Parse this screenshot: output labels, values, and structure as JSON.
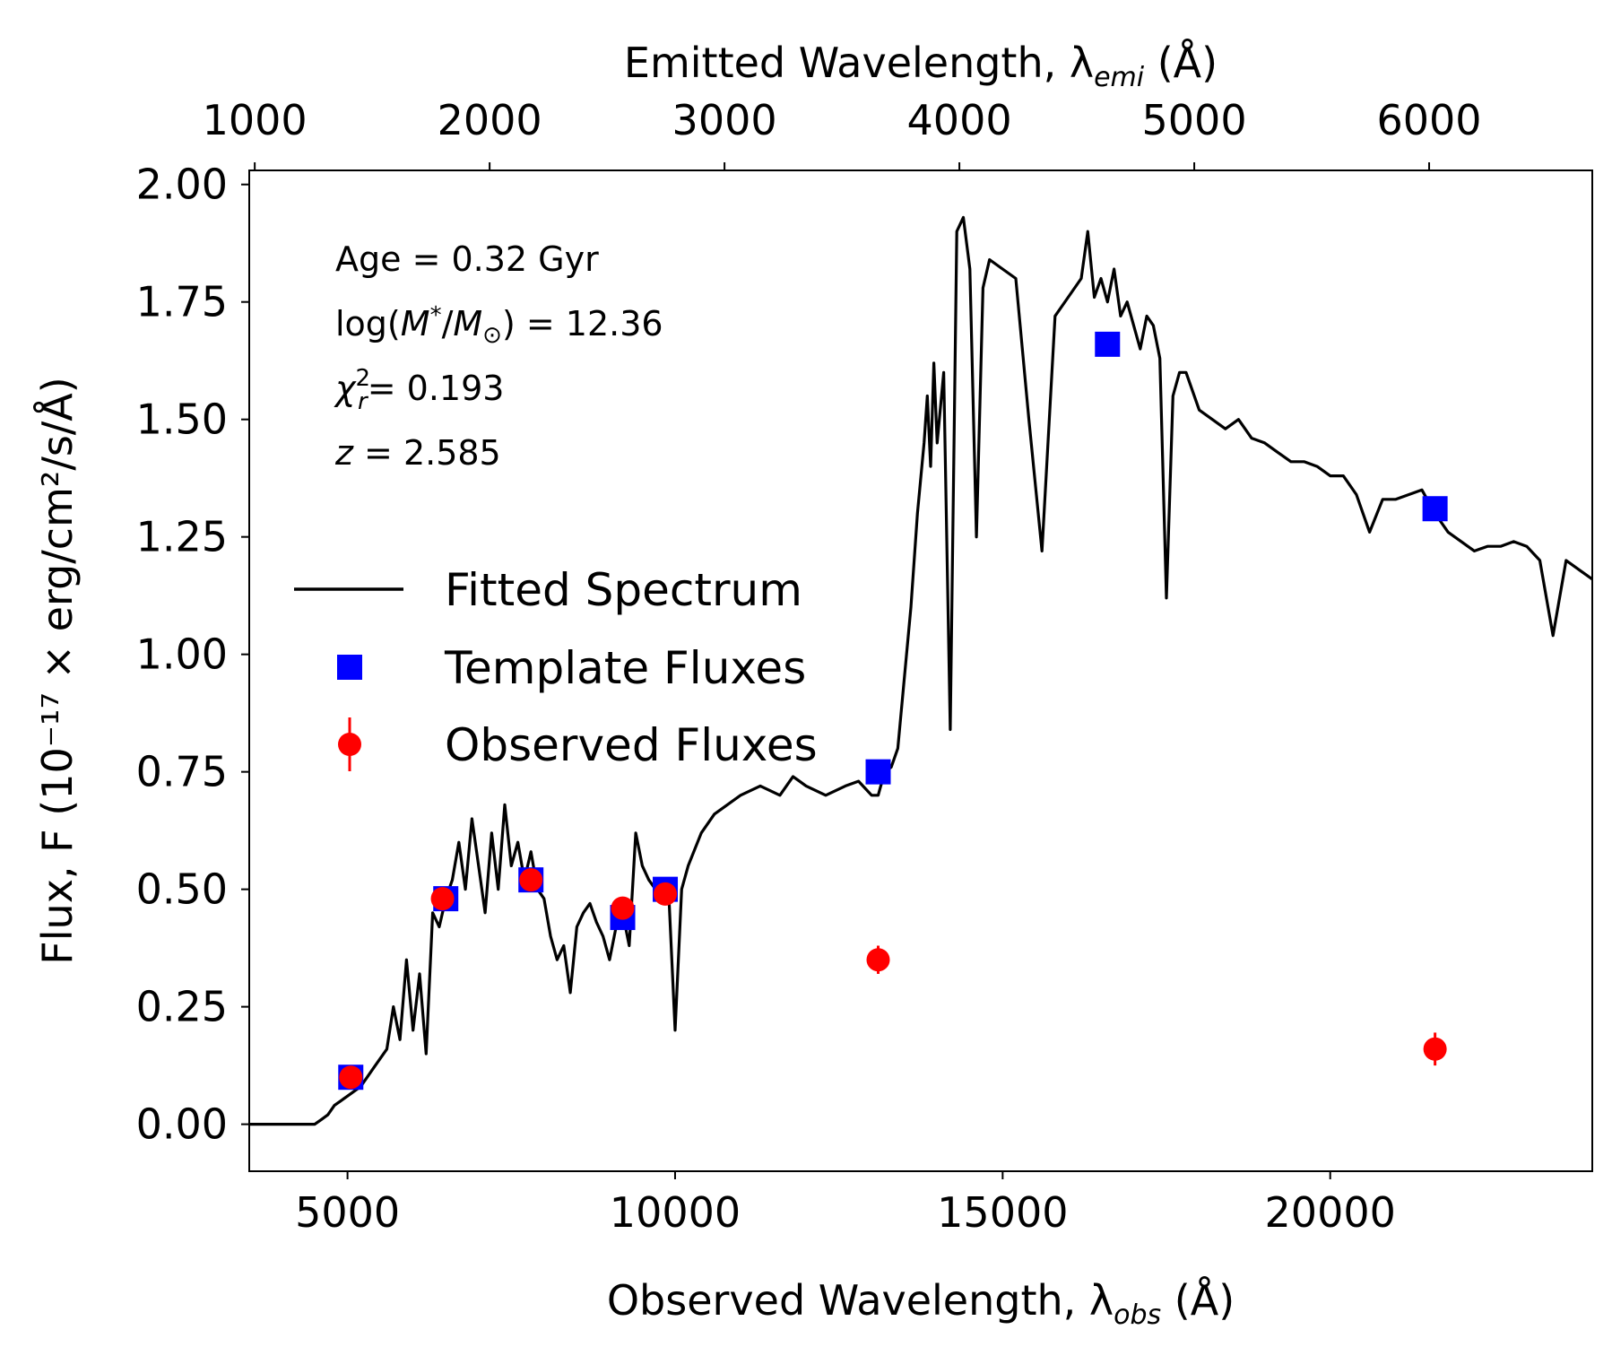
{
  "chart_data": {
    "type": "line",
    "title": "",
    "xlabel": "Observed Wavelength, λ",
    "xlabel_sub": "obs",
    "xlabel_unit": " (Å)",
    "top_xlabel": "Emitted Wavelength, λ",
    "top_xlabel_sub": "emi",
    "top_xlabel_unit": " (Å)",
    "ylabel": "Flux, F  (10⁻¹⁷ × erg/cm²/s/Å)",
    "xlim": [
      3500,
      24000
    ],
    "ylim": [
      -0.1,
      2.03
    ],
    "top_xlim": [
      976.57,
      6694.56
    ],
    "x_ticks": [
      5000,
      10000,
      15000,
      20000
    ],
    "x_tick_labels": [
      "5000",
      "10000",
      "15000",
      "20000"
    ],
    "top_x_ticks": [
      1000,
      2000,
      3000,
      4000,
      5000,
      6000
    ],
    "top_x_tick_labels": [
      "1000",
      "2000",
      "3000",
      "4000",
      "5000",
      "6000"
    ],
    "y_ticks": [
      0,
      0.25,
      0.5,
      0.75,
      1.0,
      1.25,
      1.5,
      1.75,
      2.0
    ],
    "y_tick_labels": [
      "0.00",
      "0.25",
      "0.50",
      "0.75",
      "1.00",
      "1.25",
      "1.50",
      "1.75",
      "2.00"
    ],
    "annotations": {
      "age": "Age = 0.32 Gyr",
      "mass": "log(M*/M⊙) = 12.36",
      "mass_prefix": "log(",
      "mass_m": "M",
      "mass_star": "*",
      "mass_sep": "/",
      "mass_msun": "M",
      "mass_sun": "⊙",
      "mass_rest": ") = 12.36",
      "chi": "χ²ᵣ= 0.193",
      "chi_sym": "χ",
      "chi_sup": "2",
      "chi_sub": "r",
      "chi_rest": "= 0.193",
      "z": "z = 2.585",
      "z_sym": "z",
      "z_rest": " = 2.585"
    },
    "legend": {
      "placement": "center-left",
      "entries": [
        "Fitted Spectrum",
        "Template Fluxes",
        "Observed Fluxes"
      ]
    },
    "colors": {
      "spectrum": "#000000",
      "template": "#0000ff",
      "observed": "#ff0000"
    },
    "series": [
      {
        "name": "Fitted Spectrum",
        "kind": "line",
        "x": [
          3500,
          4000,
          4500,
          4600,
          4700,
          4800,
          4900,
          5000,
          5100,
          5200,
          5300,
          5400,
          5500,
          5600,
          5700,
          5800,
          5900,
          6000,
          6100,
          6200,
          6300,
          6400,
          6500,
          6600,
          6700,
          6800,
          6900,
          7000,
          7100,
          7200,
          7300,
          7400,
          7500,
          7600,
          7700,
          7800,
          7900,
          8000,
          8100,
          8200,
          8300,
          8400,
          8500,
          8600,
          8700,
          8800,
          8900,
          9000,
          9100,
          9200,
          9300,
          9400,
          9500,
          9600,
          9700,
          9800,
          9900,
          10000,
          10100,
          10200,
          10400,
          10600,
          10800,
          11000,
          11300,
          11600,
          11800,
          12000,
          12300,
          12600,
          12800,
          13000,
          13100,
          13200,
          13300,
          13400,
          13500,
          13600,
          13700,
          13800,
          13850,
          13900,
          13950,
          14000,
          14100,
          14200,
          14300,
          14400,
          14500,
          14600,
          14700,
          14800,
          15000,
          15200,
          15400,
          15600,
          15800,
          16000,
          16200,
          16300,
          16400,
          16500,
          16600,
          16700,
          16800,
          16900,
          17000,
          17100,
          17200,
          17300,
          17400,
          17500,
          17600,
          17700,
          17800,
          18000,
          18200,
          18400,
          18600,
          18800,
          19000,
          19200,
          19400,
          19600,
          19800,
          20000,
          20200,
          20400,
          20600,
          20800,
          21000,
          21200,
          21400,
          21600,
          21800,
          22000,
          22200,
          22400,
          22600,
          22800,
          23000,
          23200,
          23400,
          23600,
          23800,
          24000
        ],
        "y": [
          0,
          0,
          0,
          0.01,
          0.02,
          0.04,
          0.05,
          0.06,
          0.07,
          0.08,
          0.1,
          0.12,
          0.14,
          0.16,
          0.25,
          0.18,
          0.35,
          0.2,
          0.32,
          0.15,
          0.45,
          0.42,
          0.48,
          0.52,
          0.6,
          0.5,
          0.65,
          0.55,
          0.45,
          0.62,
          0.5,
          0.68,
          0.55,
          0.6,
          0.52,
          0.58,
          0.5,
          0.48,
          0.4,
          0.35,
          0.38,
          0.28,
          0.42,
          0.45,
          0.47,
          0.43,
          0.4,
          0.35,
          0.42,
          0.45,
          0.38,
          0.62,
          0.55,
          0.52,
          0.5,
          0.48,
          0.5,
          0.2,
          0.5,
          0.55,
          0.62,
          0.66,
          0.68,
          0.7,
          0.72,
          0.7,
          0.74,
          0.72,
          0.7,
          0.72,
          0.73,
          0.7,
          0.7,
          0.75,
          0.76,
          0.8,
          0.95,
          1.1,
          1.3,
          1.45,
          1.55,
          1.4,
          1.62,
          1.45,
          1.6,
          0.84,
          1.9,
          1.93,
          1.82,
          1.25,
          1.78,
          1.84,
          1.82,
          1.8,
          1.5,
          1.22,
          1.72,
          1.76,
          1.8,
          1.9,
          1.76,
          1.8,
          1.75,
          1.82,
          1.72,
          1.75,
          1.7,
          1.65,
          1.72,
          1.7,
          1.63,
          1.12,
          1.55,
          1.6,
          1.6,
          1.52,
          1.5,
          1.48,
          1.5,
          1.46,
          1.45,
          1.43,
          1.41,
          1.41,
          1.4,
          1.38,
          1.38,
          1.34,
          1.26,
          1.33,
          1.33,
          1.34,
          1.35,
          1.3,
          1.26,
          1.24,
          1.22,
          1.23,
          1.23,
          1.24,
          1.23,
          1.2,
          1.04,
          1.2,
          1.18,
          1.16
        ]
      },
      {
        "name": "Template Fluxes",
        "kind": "markers",
        "x": [
          5050,
          6500,
          7800,
          9200,
          9850,
          13100,
          16600,
          21600
        ],
        "y": [
          0.1,
          0.48,
          0.52,
          0.44,
          0.5,
          0.75,
          1.66,
          1.31
        ]
      },
      {
        "name": "Observed Fluxes",
        "kind": "errorbar",
        "x": [
          5050,
          6450,
          7800,
          9200,
          9850,
          13100,
          21600
        ],
        "y": [
          0.1,
          0.48,
          0.52,
          0.46,
          0.49,
          0.35,
          0.16
        ],
        "yerr": [
          0.015,
          0.015,
          0.015,
          0.015,
          0.015,
          0.03,
          0.035
        ]
      }
    ]
  }
}
